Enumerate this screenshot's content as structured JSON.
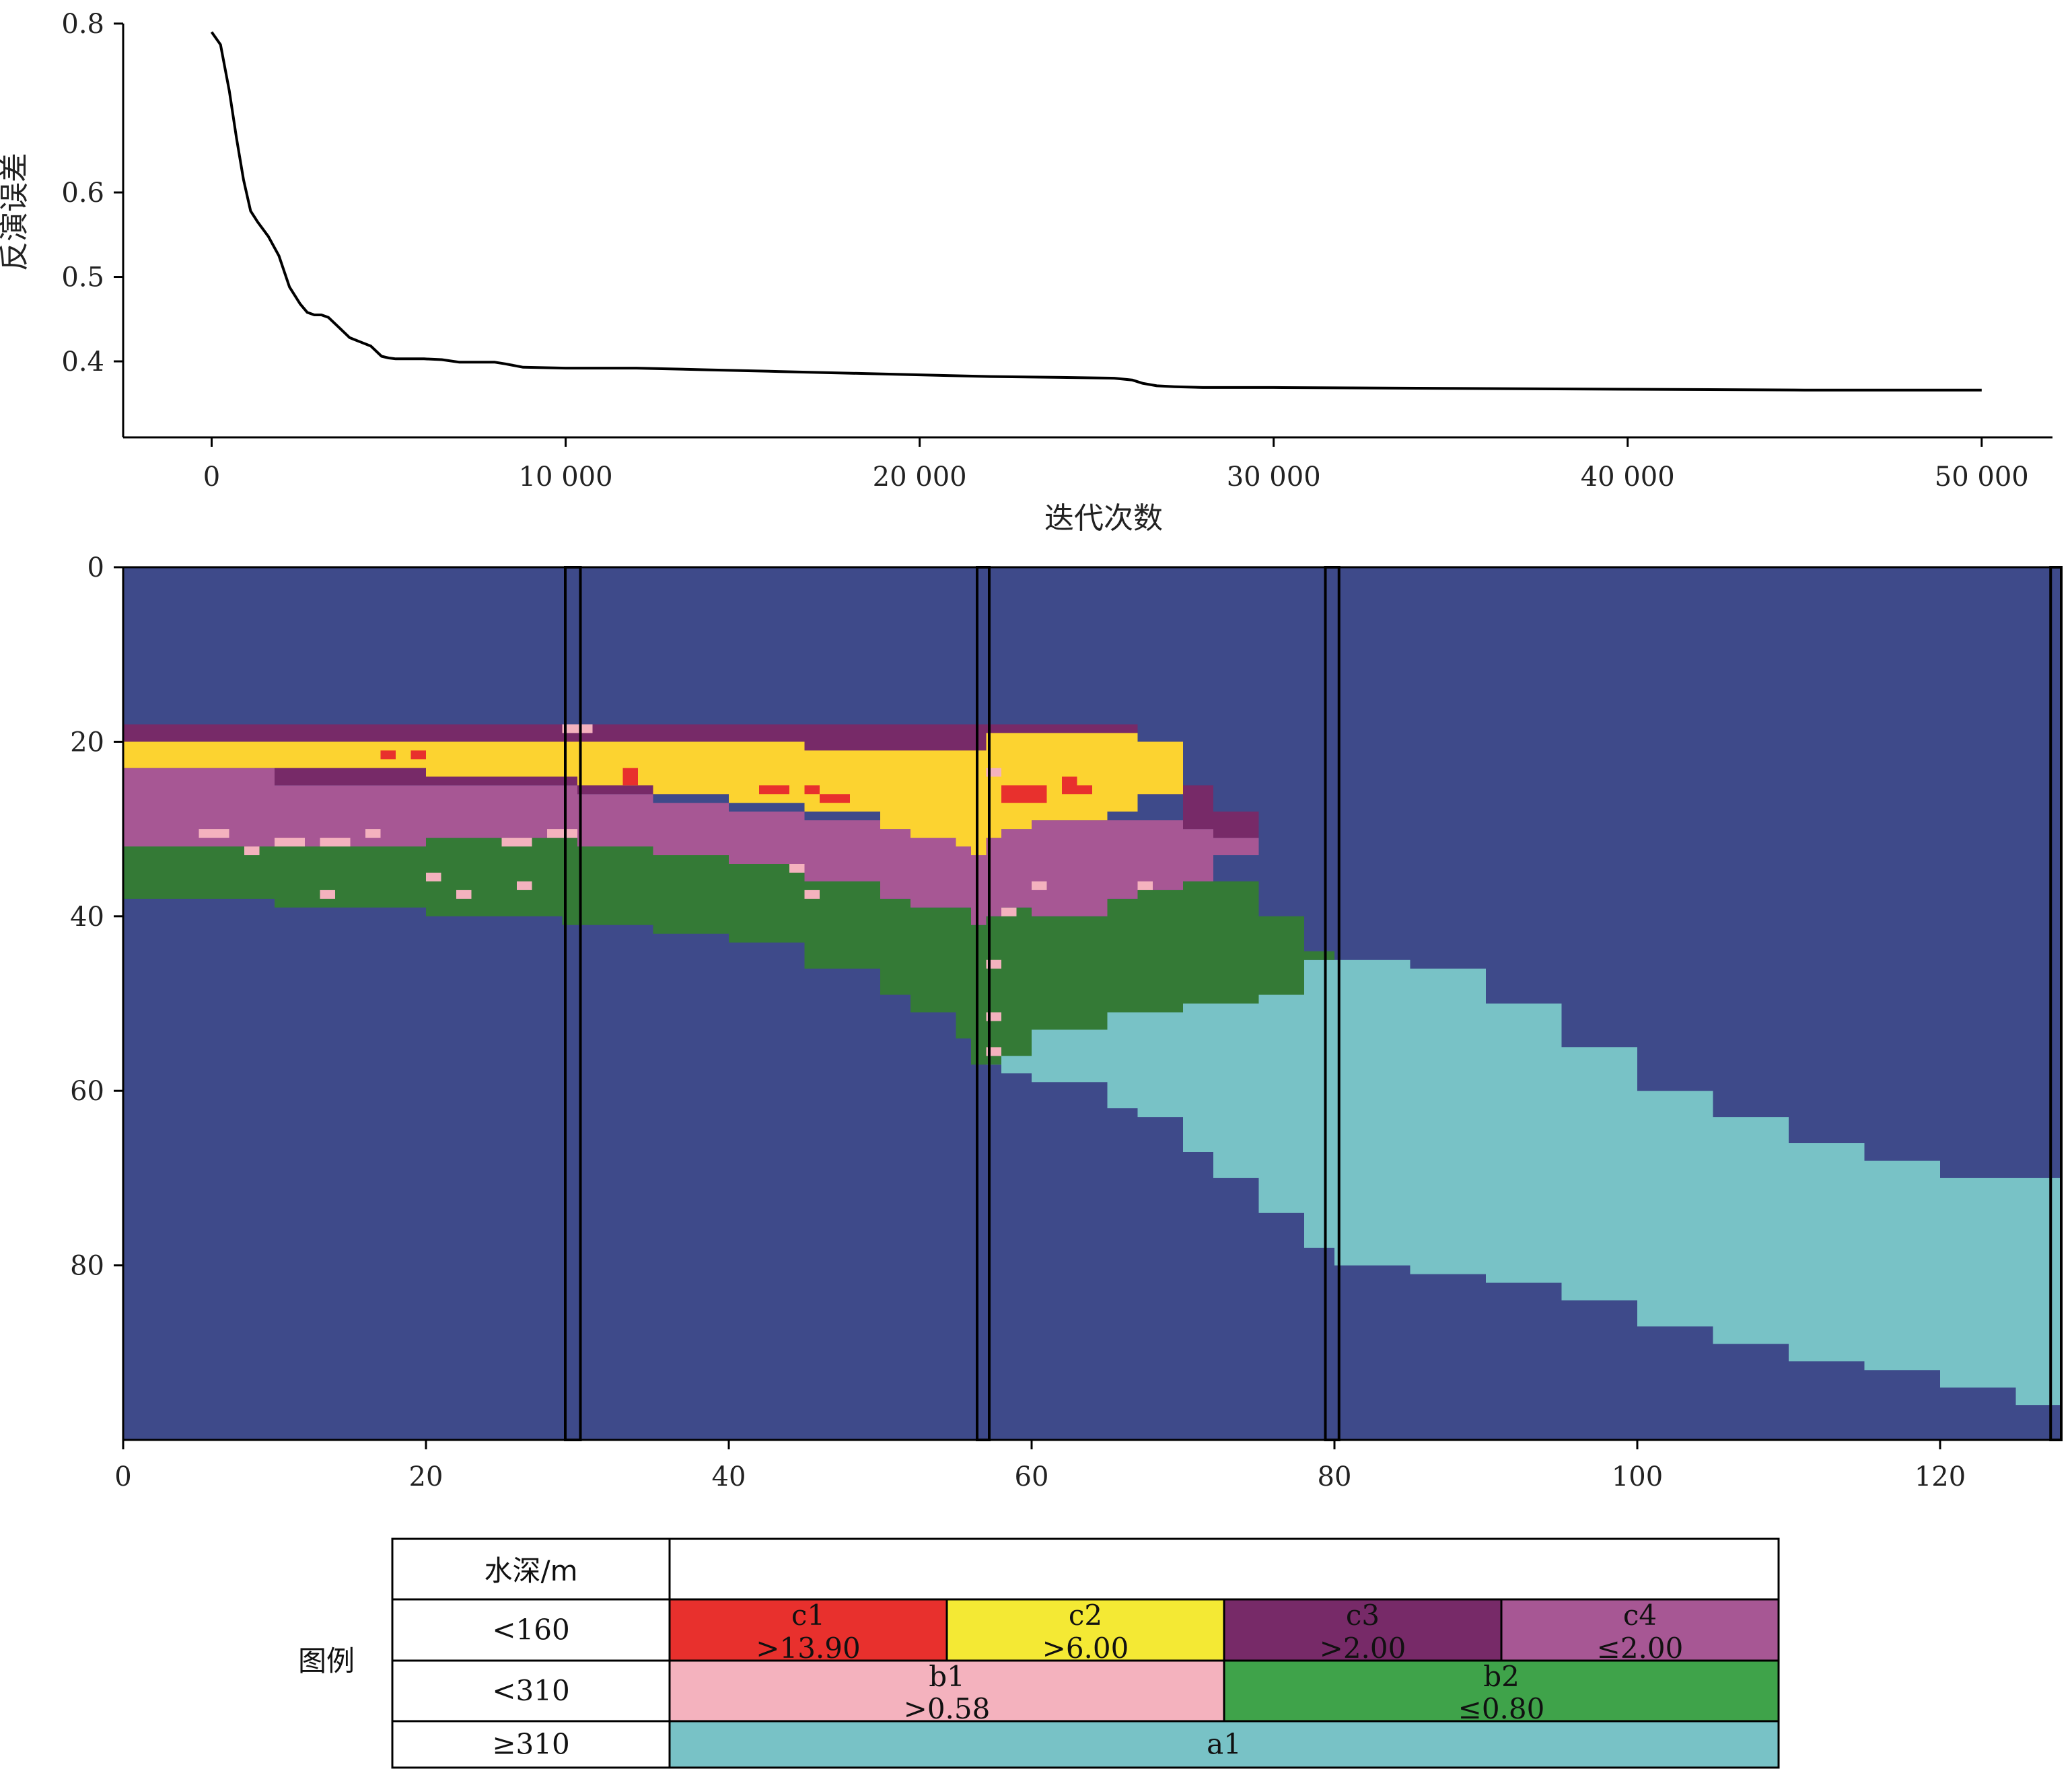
{
  "chart_data": [
    {
      "type": "line",
      "xlabel": "迭代次数",
      "ylabel": "反演误差",
      "xlim": [
        -2500,
        52000
      ],
      "ylim": [
        0.31,
        0.8
      ],
      "x_ticks": [
        0,
        10000,
        20000,
        30000,
        40000,
        50000
      ],
      "x_tick_labels": [
        "0",
        "10 000",
        "20 000",
        "30 000",
        "40 000",
        "50 000"
      ],
      "y_ticks": [
        0.8,
        0.6,
        0.5,
        0.4
      ],
      "y_tick_labels": [
        "0.8",
        "0.6",
        "0.5",
        "0.4"
      ],
      "series": [
        {
          "color": "#000000",
          "x": [
            0,
            250,
            500,
            700,
            900,
            1100,
            1300,
            1600,
            1900,
            2200,
            2500,
            2700,
            2900,
            3100,
            3300,
            3600,
            3900,
            4200,
            4500,
            4800,
            5000,
            5200,
            5600,
            6000,
            6500,
            7000,
            7500,
            8000,
            8300,
            8800,
            10000,
            12000,
            14000,
            16000,
            18000,
            20000,
            22000,
            24000,
            25500,
            26000,
            26300,
            26700,
            27200,
            28000,
            30000,
            35000,
            40000,
            45000,
            50000
          ],
          "y": [
            0.79,
            0.775,
            0.72,
            0.665,
            0.615,
            0.578,
            0.565,
            0.548,
            0.525,
            0.488,
            0.468,
            0.458,
            0.455,
            0.455,
            0.452,
            0.44,
            0.428,
            0.423,
            0.418,
            0.406,
            0.404,
            0.403,
            0.403,
            0.403,
            0.402,
            0.399,
            0.399,
            0.399,
            0.397,
            0.393,
            0.392,
            0.392,
            0.39,
            0.388,
            0.386,
            0.384,
            0.382,
            0.381,
            0.38,
            0.378,
            0.374,
            0.371,
            0.37,
            0.369,
            0.369,
            0.368,
            0.367,
            0.366,
            0.366
          ]
        }
      ]
    },
    {
      "type": "heatmap",
      "xlim": [
        0,
        128
      ],
      "ylim": [
        100,
        0
      ],
      "x_ticks": [
        0,
        20,
        40,
        60,
        80,
        100,
        120
      ],
      "x_tick_labels": [
        "0",
        "20",
        "40",
        "60",
        "80",
        "100",
        "120"
      ],
      "y_ticks": [
        0,
        20,
        40,
        60,
        80
      ],
      "y_tick_labels": [
        "0",
        "20",
        "40",
        "60",
        "80"
      ],
      "colors": {
        "background": "#3e4a8a",
        "a1": "#78c2c6",
        "b2": "#347a36",
        "b1": "#f4b2be",
        "c4": "#a75794",
        "c3": "#772a68",
        "c2": "#fcd330",
        "c1": "#e8302d"
      },
      "columns_x": [
        0,
        10,
        20,
        28,
        29,
        30,
        35,
        40,
        45,
        50,
        52,
        55,
        56,
        57,
        58,
        60,
        65,
        67,
        70,
        72,
        75,
        78,
        80,
        85,
        90,
        95,
        100,
        105,
        110,
        115,
        120,
        125,
        128
      ],
      "a1_top": [
        null,
        null,
        null,
        null,
        null,
        null,
        null,
        null,
        null,
        null,
        47,
        49,
        52,
        50,
        50,
        49,
        49,
        49,
        49,
        48,
        46,
        45,
        45,
        46,
        50,
        55,
        60,
        63,
        66,
        68,
        70,
        70,
        70
      ],
      "a1_bottom": [
        null,
        null,
        null,
        null,
        null,
        null,
        null,
        null,
        null,
        null,
        50,
        53,
        56,
        57,
        58,
        59,
        62,
        63,
        67,
        70,
        74,
        78,
        80,
        81,
        82,
        84,
        87,
        89,
        91,
        92,
        94,
        96,
        96
      ],
      "b2_top": [
        32,
        32,
        31,
        31,
        31,
        32,
        33,
        34,
        36,
        38,
        39,
        39,
        41,
        40,
        39,
        40,
        38,
        37,
        36,
        36,
        40,
        44,
        null,
        null,
        null,
        null,
        null,
        null,
        null,
        null,
        null,
        null,
        null
      ],
      "b2_bottom": [
        38,
        39,
        40,
        40,
        41,
        41,
        42,
        43,
        46,
        49,
        51,
        54,
        57,
        57,
        56,
        53,
        51,
        51,
        50,
        50,
        49,
        45,
        null,
        null,
        null,
        null,
        null,
        null,
        null,
        null,
        null,
        null,
        null
      ],
      "c4_top": [
        23,
        25,
        25,
        25,
        25,
        26,
        27,
        28,
        29,
        30,
        30,
        31,
        32,
        31,
        30,
        29,
        29,
        29,
        30,
        31,
        null,
        null,
        null,
        null,
        null,
        null,
        null,
        null,
        null,
        null,
        null,
        null,
        null
      ],
      "c4_bottom": [
        32,
        32,
        31,
        31,
        31,
        32,
        33,
        34,
        36,
        38,
        39,
        39,
        41,
        40,
        39,
        40,
        38,
        37,
        36,
        33,
        null,
        null,
        null,
        null,
        null,
        null,
        null,
        null,
        null,
        null,
        null,
        null,
        null
      ],
      "c3_top": [
        18,
        18,
        18,
        18,
        18,
        18,
        18,
        18,
        18,
        18,
        18,
        18,
        18,
        18,
        18,
        18,
        18,
        20,
        25,
        28,
        null,
        null,
        null,
        null,
        null,
        null,
        null,
        null,
        null,
        null,
        null,
        null,
        null
      ],
      "c3_bottom": [
        23,
        25,
        25,
        25,
        25,
        26,
        26,
        26,
        26,
        26,
        25,
        24,
        23,
        22,
        22,
        22,
        24,
        26,
        30,
        31,
        null,
        null,
        null,
        null,
        null,
        null,
        null,
        null,
        null,
        null,
        null,
        null,
        null
      ],
      "c2_top": [
        20,
        20,
        20,
        20,
        20,
        20,
        20,
        20,
        21,
        21,
        21,
        21,
        21,
        19,
        19,
        19,
        19,
        20,
        null,
        null,
        null,
        null,
        null,
        null,
        null,
        null,
        null,
        null,
        null,
        null,
        null,
        null,
        null
      ],
      "c2_bottom": [
        23,
        23,
        24,
        24,
        24,
        25,
        26,
        27,
        28,
        30,
        31,
        32,
        33,
        31,
        30,
        29,
        28,
        26,
        null,
        null,
        null,
        null,
        null,
        null,
        null,
        null,
        null,
        null,
        null,
        null,
        null,
        null,
        null
      ],
      "c1_patches": [
        [
          17,
          21,
          1,
          1
        ],
        [
          19,
          21,
          1,
          1
        ],
        [
          33,
          23,
          1,
          2
        ],
        [
          42,
          25,
          2,
          1
        ],
        [
          45,
          25,
          1,
          1
        ],
        [
          46,
          26,
          2,
          1
        ],
        [
          58,
          25,
          3,
          2
        ],
        [
          62,
          24,
          1,
          2
        ],
        [
          63,
          25,
          1,
          1
        ]
      ],
      "b1_patches": [
        [
          5,
          30,
          2,
          1
        ],
        [
          8,
          32,
          1,
          1
        ],
        [
          10,
          31,
          2,
          1
        ],
        [
          13,
          31,
          2,
          1
        ],
        [
          16,
          30,
          1,
          1
        ],
        [
          20,
          35,
          1,
          1
        ],
        [
          25,
          31,
          2,
          1
        ],
        [
          28,
          30,
          2,
          1
        ],
        [
          13,
          37,
          1,
          1
        ],
        [
          22,
          37,
          1,
          1
        ],
        [
          26,
          36,
          1,
          1
        ],
        [
          29,
          18,
          1,
          1
        ],
        [
          30,
          18,
          1,
          1
        ],
        [
          44,
          34,
          1,
          1
        ],
        [
          45,
          37,
          1,
          1
        ],
        [
          58,
          39,
          1,
          1
        ],
        [
          60,
          36,
          1,
          1
        ],
        [
          57,
          23,
          1,
          1
        ],
        [
          57,
          45,
          1,
          1
        ],
        [
          57,
          51,
          1,
          1
        ],
        [
          57,
          55,
          1,
          1
        ],
        [
          67,
          36,
          1,
          1
        ]
      ],
      "dividers": [
        [
          29.2,
          30.2
        ],
        [
          56.4,
          57.2
        ],
        [
          79.4,
          80.3
        ],
        [
          127.3,
          128
        ]
      ]
    }
  ],
  "legend": {
    "row_label": "图例",
    "header_label": "水深/m",
    "rows": [
      {
        "depth": "<160",
        "cells": [
          {
            "code": "c1",
            "threshold": ">13.90",
            "color": "#e8302d"
          },
          {
            "code": "c2",
            "threshold": ">6.00",
            "color": "#f4e934"
          },
          {
            "code": "c3",
            "threshold": ">2.00",
            "color": "#772a68"
          },
          {
            "code": "c4",
            "threshold": "≤2.00",
            "color": "#a75794"
          }
        ]
      },
      {
        "depth": "<310",
        "cells": [
          {
            "code": "b1",
            "threshold": ">0.58",
            "color": "#f4b2be"
          },
          {
            "code": "b2",
            "threshold": "≤0.80",
            "color": "#3fa34a"
          }
        ]
      },
      {
        "depth": "≥310",
        "cells": [
          {
            "code": "a1",
            "threshold": "",
            "color": "#78c2c6"
          }
        ]
      }
    ]
  }
}
